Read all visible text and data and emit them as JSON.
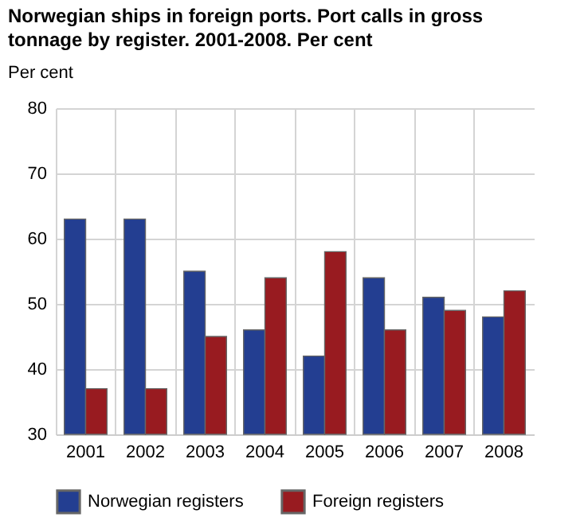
{
  "chart_data": {
    "type": "bar",
    "title": "Norwegian ships in foreign ports. Port calls in gross tonnage by register. 2001-2008. Per cent",
    "ylabel": "Per cent",
    "categories": [
      "2001",
      "2002",
      "2003",
      "2004",
      "2005",
      "2006",
      "2007",
      "2008"
    ],
    "series": [
      {
        "name": "Norwegian registers",
        "color": "#233e91",
        "values": [
          63,
          63,
          55,
          46,
          42,
          54,
          51,
          48
        ]
      },
      {
        "name": "Foreign registers",
        "color": "#981b20",
        "values": [
          37,
          37,
          45,
          54,
          58,
          46,
          49,
          52
        ]
      }
    ],
    "ylim": [
      30,
      80
    ],
    "yticks": [
      30,
      40,
      50,
      60,
      70,
      80
    ],
    "grid": true,
    "legend": "bottom"
  }
}
